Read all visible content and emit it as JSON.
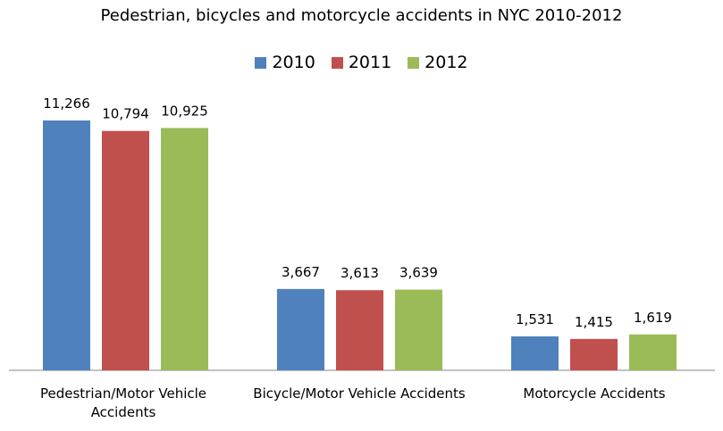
{
  "chart_data": {
    "type": "bar",
    "title": "Pedestrian, bicycles and motorcycle accidents in NYC 2010-2012",
    "categories": [
      "Pedestrian/Motor Vehicle Accidents",
      "Bicycle/Motor Vehicle Accidents",
      "Motorcycle Accidents"
    ],
    "series": [
      {
        "name": "2010",
        "values": [
          11266,
          3667,
          1531
        ],
        "labels": [
          "11,266",
          "3,667",
          "1,531"
        ],
        "color": "#4F81BD"
      },
      {
        "name": "2011",
        "values": [
          10794,
          3613,
          1415
        ],
        "labels": [
          "10,794",
          "3,613",
          "1,415"
        ],
        "color": "#C0504D"
      },
      {
        "name": "2012",
        "values": [
          10925,
          3639,
          1619
        ],
        "labels": [
          "10,925",
          "3,639",
          "1,619"
        ],
        "color": "#9BBB59"
      }
    ],
    "xlabel": "",
    "ylabel": "",
    "ylim": [
      0,
      12000
    ],
    "grid": false,
    "legend_position": "top"
  }
}
